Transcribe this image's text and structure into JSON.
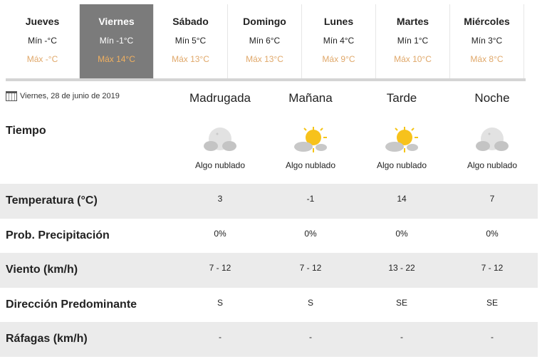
{
  "days": [
    {
      "name": "Jueves",
      "min": "Mín -°C",
      "max": "Máx -°C"
    },
    {
      "name": "Viernes",
      "min": "Mín -1°C",
      "max": "Máx 14°C",
      "active": true
    },
    {
      "name": "Sábado",
      "min": "Mín 5°C",
      "max": "Máx 13°C"
    },
    {
      "name": "Domingo",
      "min": "Mín 6°C",
      "max": "Máx 13°C"
    },
    {
      "name": "Lunes",
      "min": "Mín 4°C",
      "max": "Máx 9°C"
    },
    {
      "name": "Martes",
      "min": "Mín 1°C",
      "max": "Máx 10°C"
    },
    {
      "name": "Miércoles",
      "min": "Mín 3°C",
      "max": "Máx 8°C"
    }
  ],
  "date": "Viernes, 28 de junio de 2019",
  "periods": [
    "Madrugada",
    "Mañana",
    "Tarde",
    "Noche"
  ],
  "tiempo": {
    "label": "Tiempo",
    "conditions": [
      "Algo nublado",
      "Algo nublado",
      "Algo nublado",
      "Algo nublado"
    ],
    "icons": [
      "moon-cloud-icon",
      "sun-cloud-icon",
      "sun-cloud-icon",
      "moon-cloud-icon"
    ]
  },
  "rows": [
    {
      "label": "Temperatura (°C)",
      "values": [
        "3",
        "-1",
        "14",
        "7"
      ]
    },
    {
      "label": "Prob. Precipitación",
      "values": [
        "0%",
        "0%",
        "0%",
        "0%"
      ]
    },
    {
      "label": "Viento (km/h)",
      "values": [
        "7 - 12",
        "7 - 12",
        "13 - 22",
        "7 - 12"
      ]
    },
    {
      "label": "Dirección Predominante",
      "values": [
        "S",
        "S",
        "SE",
        "SE"
      ]
    },
    {
      "label": "Ráfagas (km/h)",
      "values": [
        "-",
        "-",
        "-",
        "-"
      ]
    }
  ],
  "colors": {
    "active_tab": "#7b7b7b",
    "max_temp": "#e0a86a",
    "row_grey": "#ebebeb"
  }
}
